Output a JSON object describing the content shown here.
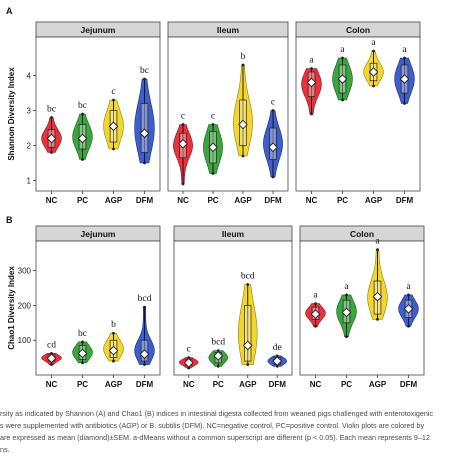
{
  "figure": {
    "caption_lines": [
      "rsity as indicated by Shannon (A) and Chao1 (B) indices in intestinal digesta collected from weaned pigs challenged with enterotoxigenic",
      "s were supplemented with antibiotics (AGP) or B. subtilis (DFM). NC=negative control, PC=positive control. Violin plots are colored by",
      "are expressed as mean (diamond)±SEM. a-dMeans without a common superscript are different (p < 0.05). Each mean represents 9–12",
      "ns."
    ]
  },
  "colors": {
    "NC": "#e8202c",
    "PC": "#2a9d2e",
    "AGP": "#f2d21b",
    "DFM": "#2f4fc7"
  },
  "chart_data": [
    {
      "type": "violin",
      "panel_label": "A",
      "ylabel": "Shannon Diversity Index",
      "ylim": [
        0.7,
        5.1
      ],
      "yticks": [
        1,
        2,
        3,
        4
      ],
      "categories": [
        "NC",
        "PC",
        "AGP",
        "DFM"
      ],
      "facets": [
        {
          "title": "Jejunum",
          "groups": [
            {
              "name": "NC",
              "mean": 2.2,
              "min": 1.8,
              "max": 2.8,
              "q1": 1.95,
              "q3": 2.45,
              "label": "bc"
            },
            {
              "name": "PC",
              "mean": 2.2,
              "min": 1.6,
              "max": 2.9,
              "q1": 1.9,
              "q3": 2.6,
              "label": "bc"
            },
            {
              "name": "AGP",
              "mean": 2.55,
              "min": 1.9,
              "max": 3.3,
              "q1": 2.1,
              "q3": 3.0,
              "label": "c"
            },
            {
              "name": "DFM",
              "mean": 2.35,
              "min": 1.5,
              "max": 3.9,
              "q1": 1.8,
              "q3": 3.2,
              "label": "bc"
            }
          ]
        },
        {
          "title": "Ileum",
          "groups": [
            {
              "name": "NC",
              "mean": 2.05,
              "min": 0.9,
              "max": 2.6,
              "q1": 1.65,
              "q3": 2.35,
              "label": "c"
            },
            {
              "name": "PC",
              "mean": 1.95,
              "min": 1.2,
              "max": 2.6,
              "q1": 1.5,
              "q3": 2.4,
              "label": "c"
            },
            {
              "name": "AGP",
              "mean": 2.6,
              "min": 1.7,
              "max": 4.3,
              "q1": 2.0,
              "q3": 3.3,
              "label": "b"
            },
            {
              "name": "DFM",
              "mean": 1.95,
              "min": 1.1,
              "max": 3.0,
              "q1": 1.6,
              "q3": 2.5,
              "label": "c"
            }
          ]
        },
        {
          "title": "Colon",
          "groups": [
            {
              "name": "NC",
              "mean": 3.8,
              "min": 2.9,
              "max": 4.2,
              "q1": 3.4,
              "q3": 4.1,
              "label": "a"
            },
            {
              "name": "PC",
              "mean": 3.9,
              "min": 3.3,
              "max": 4.5,
              "q1": 3.5,
              "q3": 4.3,
              "label": "a"
            },
            {
              "name": "AGP",
              "mean": 4.1,
              "min": 3.7,
              "max": 4.7,
              "q1": 3.85,
              "q3": 4.35,
              "label": "a"
            },
            {
              "name": "DFM",
              "mean": 3.9,
              "min": 3.2,
              "max": 4.5,
              "q1": 3.5,
              "q3": 4.3,
              "label": "a"
            }
          ]
        }
      ]
    },
    {
      "type": "violin",
      "panel_label": "B",
      "ylabel": "Chao1 Diversity Index",
      "ylim": [
        0,
        385
      ],
      "yticks": [
        100,
        200,
        300
      ],
      "categories": [
        "NC",
        "PC",
        "AGP",
        "DFM"
      ],
      "facets": [
        {
          "title": "Jejunum",
          "groups": [
            {
              "name": "NC",
              "mean": 48,
              "min": 30,
              "max": 62,
              "q1": 40,
              "q3": 58,
              "label": "cd"
            },
            {
              "name": "PC",
              "mean": 62,
              "min": 35,
              "max": 95,
              "q1": 45,
              "q3": 85,
              "label": "bc"
            },
            {
              "name": "AGP",
              "mean": 70,
              "min": 40,
              "max": 120,
              "q1": 50,
              "q3": 100,
              "label": "b"
            },
            {
              "name": "DFM",
              "mean": 60,
              "min": 30,
              "max": 195,
              "q1": 40,
              "q3": 100,
              "label": "bcd"
            }
          ]
        },
        {
          "title": "Ileum",
          "groups": [
            {
              "name": "NC",
              "mean": 35,
              "min": 20,
              "max": 50,
              "q1": 28,
              "q3": 45,
              "label": "c"
            },
            {
              "name": "PC",
              "mean": 55,
              "min": 25,
              "max": 70,
              "q1": 35,
              "q3": 65,
              "label": "bcd"
            },
            {
              "name": "AGP",
              "mean": 85,
              "min": 30,
              "max": 260,
              "q1": 40,
              "q3": 200,
              "label": "bcd"
            },
            {
              "name": "DFM",
              "mean": 40,
              "min": 25,
              "max": 55,
              "q1": 30,
              "q3": 50,
              "label": "de"
            }
          ]
        },
        {
          "title": "Colon",
          "groups": [
            {
              "name": "NC",
              "mean": 175,
              "min": 140,
              "max": 205,
              "q1": 160,
              "q3": 195,
              "label": "a"
            },
            {
              "name": "PC",
              "mean": 180,
              "min": 110,
              "max": 230,
              "q1": 150,
              "q3": 215,
              "label": "a"
            },
            {
              "name": "AGP",
              "mean": 225,
              "min": 160,
              "max": 360,
              "q1": 175,
              "q3": 270,
              "label": "a"
            },
            {
              "name": "DFM",
              "mean": 190,
              "min": 140,
              "max": 230,
              "q1": 165,
              "q3": 215,
              "label": "a"
            }
          ]
        }
      ]
    }
  ]
}
